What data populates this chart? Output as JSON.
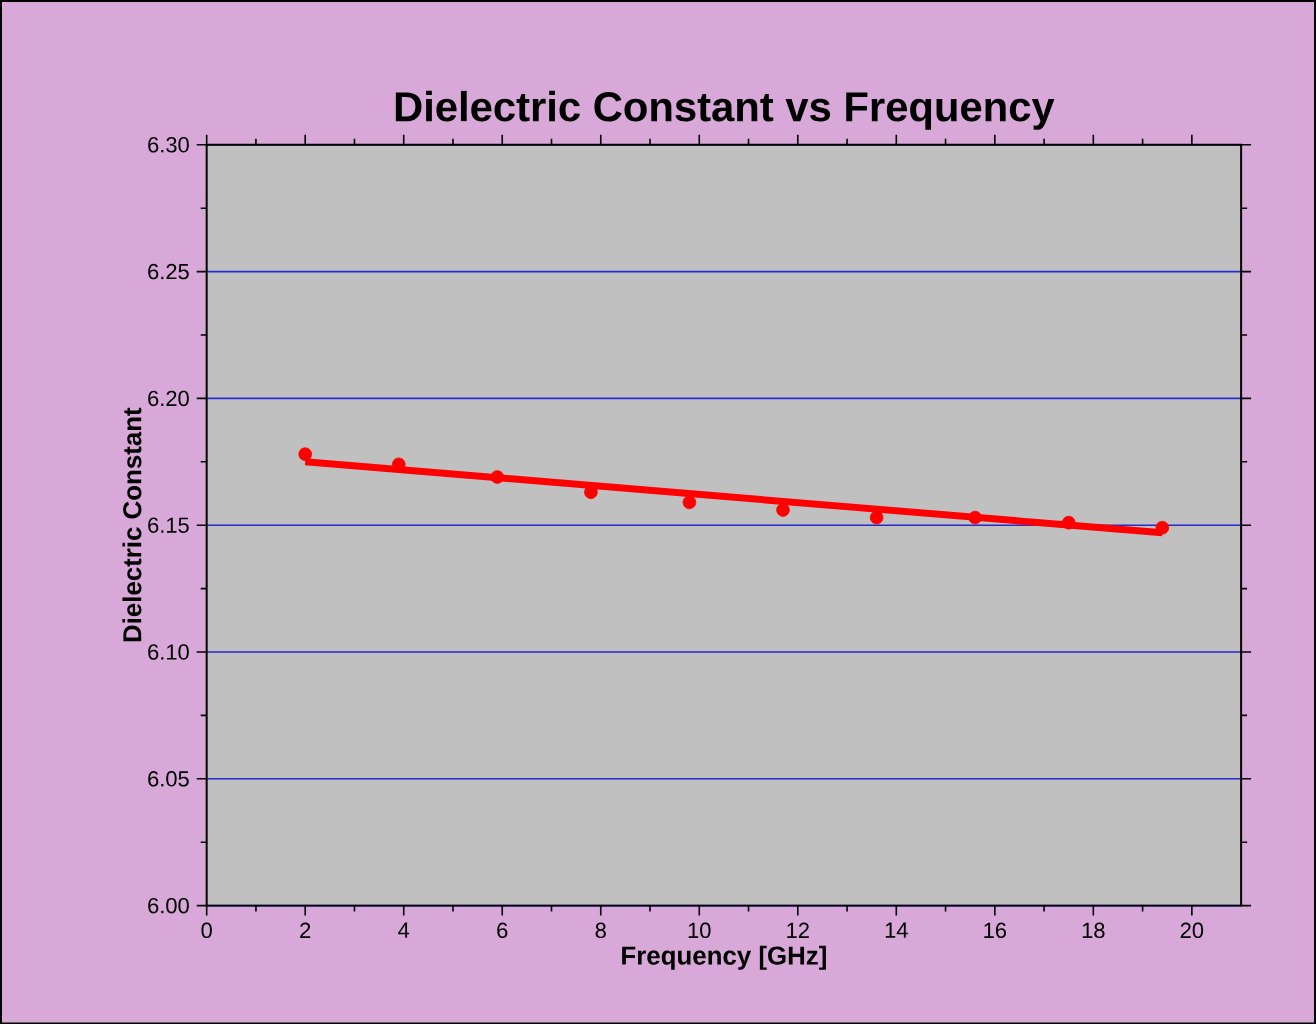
{
  "chart_data": {
    "type": "scatter",
    "title": "Dielectric Constant vs Frequency",
    "xlabel": "Frequency [GHz]",
    "ylabel": "Dielectric Constant",
    "xlim": [
      0,
      21
    ],
    "xticks": [
      0,
      2,
      4,
      6,
      8,
      10,
      12,
      14,
      16,
      18,
      20
    ],
    "ylim": [
      6.0,
      6.3
    ],
    "yticks": [
      {
        "value": 6.0,
        "label": "6.00"
      },
      {
        "value": 6.05,
        "label": "6.05"
      },
      {
        "value": 6.1,
        "label": "6.10"
      },
      {
        "value": 6.15,
        "label": "6.15"
      },
      {
        "value": 6.2,
        "label": "6.20"
      },
      {
        "value": 6.25,
        "label": "6.25"
      },
      {
        "value": 6.3,
        "label": "6.30"
      }
    ],
    "grid": "y",
    "series": [
      {
        "marker": "circle",
        "color": "#ff0000",
        "x": [
          2.0,
          3.9,
          5.9,
          7.8,
          9.8,
          11.7,
          13.6,
          15.6,
          17.5,
          19.4
        ],
        "values": [
          6.178,
          6.174,
          6.169,
          6.163,
          6.159,
          6.156,
          6.153,
          6.153,
          6.151,
          6.149
        ]
      },
      {
        "type": "line",
        "marker": "none",
        "color": "#ff0000",
        "x": [
          2.0,
          19.4
        ],
        "values": [
          6.175,
          6.147
        ]
      }
    ]
  }
}
